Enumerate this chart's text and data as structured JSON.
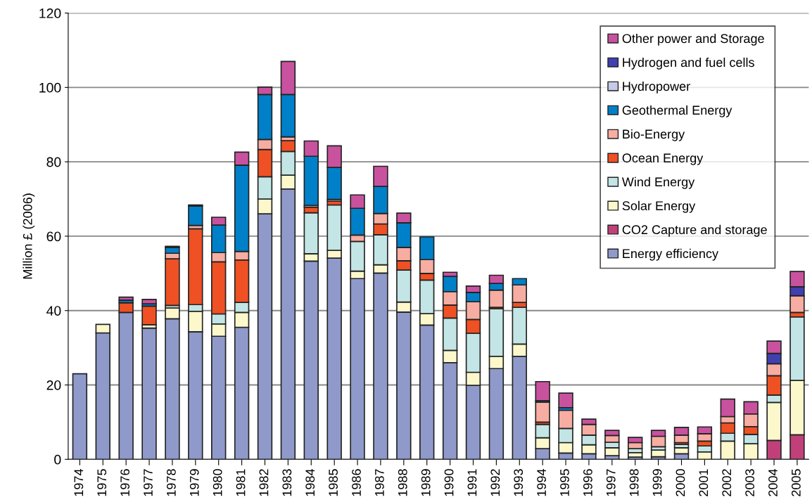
{
  "chart_data": {
    "type": "bar",
    "stacked": true,
    "ylabel": "Million £ (2006)",
    "categories": [
      "1974",
      "1975",
      "1976",
      "1977",
      "1978",
      "1979",
      "1980",
      "1981",
      "1982",
      "1983",
      "1984",
      "1985",
      "1986",
      "1987",
      "1988",
      "1989",
      "1990",
      "1991",
      "1992",
      "1993",
      "1994",
      "1995",
      "1996",
      "1997",
      "1998",
      "1999",
      "2000",
      "2001",
      "2002",
      "2003",
      "2004",
      "2005"
    ],
    "series": [
      {
        "name": "Energy efficiency",
        "color": "#8f9acb",
        "values": [
          23,
          34,
          39.5,
          35.3,
          37.8,
          34.3,
          33.1,
          35.5,
          66,
          72.7,
          53.3,
          54.1,
          48.6,
          50.1,
          39.6,
          36.1,
          26,
          19.9,
          24.4,
          27.7,
          2.9,
          1.7,
          1.5,
          1,
          0.6,
          0.7,
          1.5,
          null,
          null,
          null,
          null,
          null
        ]
      },
      {
        "name": "CO2 Capture and storage",
        "color": "#c2407a",
        "values": [
          null,
          null,
          null,
          null,
          null,
          null,
          null,
          null,
          null,
          null,
          null,
          null,
          null,
          null,
          null,
          null,
          null,
          null,
          null,
          null,
          null,
          null,
          null,
          null,
          null,
          null,
          null,
          null,
          null,
          null,
          5.1,
          6.6
        ]
      },
      {
        "name": "Solar Energy",
        "color": "#fdf8cc",
        "values": [
          null,
          2.3,
          null,
          0.9,
          2.9,
          5.5,
          3.3,
          4,
          4,
          3.7,
          2,
          2.1,
          2,
          2.2,
          2.7,
          3.1,
          3.3,
          3.5,
          3.3,
          3.3,
          2.9,
          2.8,
          2.4,
          2.1,
          1.2,
          1.8,
          1.6,
          2,
          4.9,
          4.2,
          10.2,
          14.6
        ]
      },
      {
        "name": "Wind Energy",
        "color": "#c3e5e5",
        "values": [
          null,
          null,
          null,
          null,
          0.7,
          1.8,
          2.7,
          2.7,
          6,
          6.4,
          11,
          12.2,
          8,
          8.1,
          8.6,
          9,
          8.7,
          10.5,
          12.8,
          9.9,
          3.6,
          3.8,
          2.6,
          1.5,
          1.1,
          0.9,
          0.9,
          1.6,
          2.1,
          2.5,
          2,
          17.1
        ]
      },
      {
        "name": "Ocean Energy",
        "color": "#ef5124",
        "values": [
          null,
          null,
          2.6,
          5,
          12.5,
          20.4,
          14,
          11.4,
          7.3,
          2.9,
          1.5,
          1,
          null,
          2.9,
          2.5,
          1.8,
          3.5,
          3.7,
          0.4,
          1.3,
          0.6,
          null,
          null,
          null,
          null,
          null,
          0.5,
          1.3,
          2.8,
          2.1,
          5.2,
          1.2
        ]
      },
      {
        "name": "Bio-Energy",
        "color": "#f7ada2",
        "values": [
          null,
          null,
          null,
          null,
          1.5,
          0.9,
          2.5,
          2.3,
          2.7,
          1,
          0.5,
          0.5,
          1.7,
          2.8,
          3.6,
          3.7,
          3.6,
          4.8,
          4.6,
          4.7,
          5.4,
          4.9,
          2.9,
          1.8,
          1.6,
          2.8,
          2,
          2,
          1.7,
          3.4,
          3.2,
          4.5
        ]
      },
      {
        "name": "Geothermal Energy",
        "color": "#0080c8",
        "values": [
          null,
          null,
          0.7,
          0.6,
          1.6,
          5.2,
          7.4,
          23.2,
          12.1,
          11.4,
          13.2,
          8.6,
          7.2,
          7.3,
          6.6,
          6.1,
          4.1,
          2.5,
          1.8,
          1.7,
          0.4,
          0.7,
          null,
          null,
          null,
          null,
          null,
          null,
          null,
          null,
          null,
          null
        ]
      },
      {
        "name": "Hydropower",
        "color": "#c5cae9",
        "values": [
          null,
          null,
          null,
          null,
          null,
          null,
          null,
          null,
          null,
          null,
          null,
          null,
          null,
          null,
          null,
          null,
          null,
          null,
          null,
          null,
          null,
          null,
          null,
          null,
          null,
          null,
          null,
          null,
          null,
          null,
          null,
          null
        ]
      },
      {
        "name": "Hydrogen and fuel cells",
        "color": "#4040b0",
        "values": [
          null,
          null,
          null,
          null,
          null,
          null,
          null,
          null,
          null,
          null,
          null,
          null,
          null,
          null,
          null,
          null,
          null,
          null,
          null,
          null,
          null,
          null,
          null,
          null,
          null,
          null,
          null,
          null,
          null,
          null,
          2.8,
          2.4
        ]
      },
      {
        "name": "Other power and Storage",
        "color": "#c9529f",
        "values": [
          null,
          null,
          0.8,
          1.2,
          0.3,
          0.3,
          2.1,
          3.5,
          2,
          8.9,
          4.1,
          5.8,
          3.6,
          5.4,
          2.6,
          null,
          1.1,
          1.7,
          2.2,
          null,
          5.1,
          3.9,
          1.4,
          1.4,
          1.4,
          1.6,
          2.1,
          1.8,
          4.7,
          3.3,
          3.3,
          4.1
        ]
      }
    ],
    "ylim": [
      0,
      120
    ],
    "yticks": [
      0,
      20,
      40,
      60,
      80,
      100,
      120
    ],
    "grid": "y",
    "legend": "top right"
  }
}
